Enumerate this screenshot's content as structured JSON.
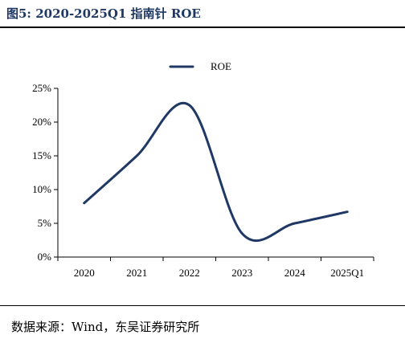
{
  "figure": {
    "title": "图5:  2020-2025Q1 指南针 ROE",
    "source": "数据来源：Wind，东吴证券研究所"
  },
  "colors": {
    "line": "#1f3864",
    "axis": "#000000"
  },
  "chart_data": {
    "type": "line",
    "title": "",
    "xlabel": "",
    "ylabel": "",
    "categories": [
      "2020",
      "2021",
      "2022",
      "2023",
      "2024",
      "2025Q1"
    ],
    "series": [
      {
        "name": "ROE",
        "values": [
          8.0,
          15.0,
          22.5,
          3.5,
          5.0,
          6.7
        ]
      }
    ],
    "ylim": [
      0,
      25
    ],
    "yticks": [
      "0%",
      "5%",
      "10%",
      "15%",
      "20%",
      "25%"
    ],
    "smooth": true,
    "grid": false,
    "legend_position": "top-center"
  }
}
